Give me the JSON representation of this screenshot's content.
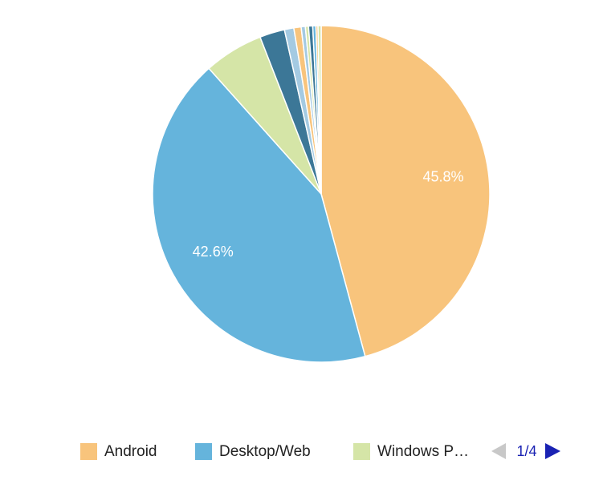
{
  "chart_data": {
    "type": "pie",
    "categories": [
      "Android",
      "Desktop/Web",
      "Windows P…",
      null,
      null,
      null,
      null,
      null,
      null,
      null,
      null,
      null
    ],
    "values": [
      45.8,
      42.6,
      5.7,
      2.4,
      0.9,
      0.7,
      0.4,
      0.3,
      0.4,
      0.3,
      0.2,
      0.3
    ],
    "value_labels": [
      "45.8%",
      "42.6%",
      null,
      null,
      null,
      null,
      null,
      null,
      null,
      null,
      null,
      null
    ],
    "colors": [
      "#f8c47c",
      "#65b4dc",
      "#d5e5a7",
      "#3c7797",
      "#a4cae2",
      "#f8c47c",
      "#a4cae2",
      "#d5e5a7",
      "#3c7797",
      "#65b4dc",
      "#f8c47c",
      "#d5e5a7"
    ],
    "legend_page": "1/4"
  }
}
